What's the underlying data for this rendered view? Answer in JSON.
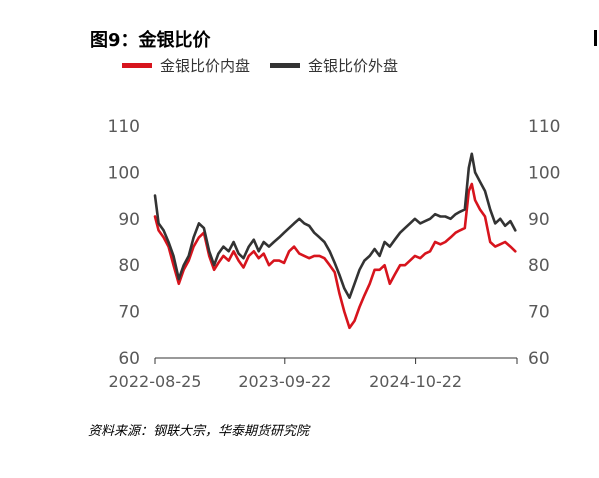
{
  "figure": {
    "title": "图9：金银比价",
    "source": "资料来源：钢联大宗，华泰期货研究院"
  },
  "chart_data": {
    "type": "line",
    "ylim": [
      60,
      110
    ],
    "yticks": [
      60,
      70,
      80,
      90,
      100,
      110
    ],
    "xlim": [
      "2022-08-25",
      "2025-08-25"
    ],
    "xticks": [
      "2022-08-25",
      "2023-09-22",
      "2024-10-22"
    ],
    "colors": {
      "inner": "#d7141d",
      "outer": "#333333"
    },
    "series": [
      {
        "name": "金银比价内盘",
        "color": "#d7141d",
        "x": [
          "2022-08-25",
          "2022-09-05",
          "2022-09-20",
          "2022-10-05",
          "2022-10-20",
          "2022-11-05",
          "2022-11-20",
          "2022-12-05",
          "2022-12-20",
          "2023-01-05",
          "2023-01-20",
          "2023-02-05",
          "2023-02-20",
          "2023-03-05",
          "2023-03-20",
          "2023-04-05",
          "2023-04-20",
          "2023-05-05",
          "2023-05-20",
          "2023-06-05",
          "2023-06-20",
          "2023-07-05",
          "2023-07-20",
          "2023-08-05",
          "2023-08-20",
          "2023-09-05",
          "2023-09-20",
          "2023-10-05",
          "2023-10-20",
          "2023-11-05",
          "2023-11-20",
          "2023-12-05",
          "2023-12-20",
          "2024-01-05",
          "2024-01-20",
          "2024-02-05",
          "2024-02-20",
          "2024-03-05",
          "2024-03-20",
          "2024-04-05",
          "2024-04-20",
          "2024-05-05",
          "2024-05-20",
          "2024-06-05",
          "2024-06-20",
          "2024-07-05",
          "2024-07-20",
          "2024-08-05",
          "2024-08-20",
          "2024-09-05",
          "2024-09-20",
          "2024-10-05",
          "2024-10-20",
          "2024-11-05",
          "2024-11-20",
          "2024-12-05",
          "2024-12-20",
          "2025-01-05",
          "2025-01-20",
          "2025-02-05",
          "2025-02-20",
          "2025-03-05",
          "2025-03-20",
          "2025-04-01",
          "2025-04-10",
          "2025-04-20",
          "2025-05-05",
          "2025-05-20",
          "2025-06-05",
          "2025-06-20",
          "2025-07-05",
          "2025-07-20",
          "2025-08-05",
          "2025-08-20"
        ],
        "values": [
          90.5,
          87.5,
          86.0,
          84.0,
          80.0,
          76.0,
          79.0,
          81.0,
          84.0,
          86.0,
          87.0,
          82.0,
          79.0,
          80.5,
          82.0,
          81.0,
          83.0,
          81.0,
          79.5,
          82.0,
          83.0,
          81.5,
          82.5,
          80.0,
          81.0,
          81.0,
          80.5,
          83.0,
          84.0,
          82.5,
          82.0,
          81.5,
          82.0,
          82.0,
          81.5,
          80.0,
          78.5,
          74.0,
          70.0,
          66.5,
          68.0,
          71.0,
          73.5,
          76.0,
          79.0,
          79.0,
          80.0,
          76.0,
          78.0,
          80.0,
          80.0,
          81.0,
          82.0,
          81.5,
          82.5,
          83.0,
          85.0,
          84.5,
          85.0,
          86.0,
          87.0,
          87.5,
          88.0,
          96.0,
          97.5,
          94.0,
          92.0,
          90.5,
          85.0,
          84.0,
          84.5,
          85.0,
          84.0,
          83.0
        ]
      },
      {
        "name": "金银比价外盘",
        "color": "#333333",
        "x": [
          "2022-08-25",
          "2022-09-05",
          "2022-09-20",
          "2022-10-05",
          "2022-10-20",
          "2022-11-05",
          "2022-11-20",
          "2022-12-05",
          "2022-12-20",
          "2023-01-05",
          "2023-01-20",
          "2023-02-05",
          "2023-02-20",
          "2023-03-05",
          "2023-03-20",
          "2023-04-05",
          "2023-04-20",
          "2023-05-05",
          "2023-05-20",
          "2023-06-05",
          "2023-06-20",
          "2023-07-05",
          "2023-07-20",
          "2023-08-05",
          "2023-08-20",
          "2023-09-05",
          "2023-09-20",
          "2023-10-05",
          "2023-10-20",
          "2023-11-05",
          "2023-11-20",
          "2023-12-05",
          "2023-12-20",
          "2024-01-05",
          "2024-01-20",
          "2024-02-05",
          "2024-02-20",
          "2024-03-05",
          "2024-03-20",
          "2024-04-05",
          "2024-04-20",
          "2024-05-05",
          "2024-05-20",
          "2024-06-05",
          "2024-06-20",
          "2024-07-05",
          "2024-07-20",
          "2024-08-05",
          "2024-08-20",
          "2024-09-05",
          "2024-09-20",
          "2024-10-05",
          "2024-10-20",
          "2024-11-05",
          "2024-11-20",
          "2024-12-05",
          "2024-12-20",
          "2025-01-05",
          "2025-01-20",
          "2025-02-05",
          "2025-02-20",
          "2025-03-05",
          "2025-03-20",
          "2025-04-01",
          "2025-04-10",
          "2025-04-20",
          "2025-05-05",
          "2025-05-20",
          "2025-06-05",
          "2025-06-20",
          "2025-07-05",
          "2025-07-20",
          "2025-08-05",
          "2025-08-20"
        ],
        "values": [
          95.0,
          89.0,
          87.5,
          85.0,
          82.0,
          77.0,
          80.0,
          82.0,
          86.0,
          89.0,
          88.0,
          83.0,
          80.0,
          82.5,
          84.0,
          83.0,
          85.0,
          82.5,
          81.5,
          84.0,
          85.5,
          83.0,
          85.0,
          84.0,
          85.0,
          86.0,
          87.0,
          88.0,
          89.0,
          90.0,
          89.0,
          88.5,
          87.0,
          86.0,
          85.0,
          83.0,
          80.5,
          78.0,
          75.0,
          73.0,
          76.0,
          79.0,
          81.0,
          82.0,
          83.5,
          82.0,
          85.0,
          84.0,
          85.5,
          87.0,
          88.0,
          89.0,
          90.0,
          89.0,
          89.5,
          90.0,
          91.0,
          90.5,
          90.5,
          90.0,
          91.0,
          91.5,
          92.0,
          101.0,
          104.0,
          100.0,
          98.0,
          96.0,
          92.0,
          89.0,
          90.0,
          88.5,
          89.5,
          87.5
        ]
      }
    ]
  }
}
